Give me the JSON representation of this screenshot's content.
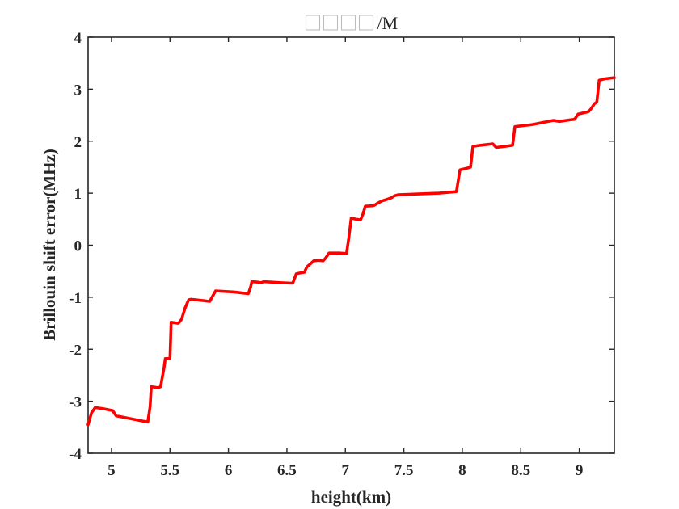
{
  "chart_data": {
    "type": "line",
    "title": "□□□□/M",
    "xlabel": "height(km)",
    "ylabel": "Brillouin shift error(MHz)",
    "xlim": [
      4.8,
      9.3
    ],
    "ylim": [
      -4,
      4
    ],
    "xticks": [
      5,
      5.5,
      6,
      6.5,
      7,
      7.5,
      8,
      8.5,
      9
    ],
    "xtick_labels": [
      "5",
      "5.5",
      "6",
      "6.5",
      "7",
      "7.5",
      "8",
      "8.5",
      "9"
    ],
    "yticks": [
      -4,
      -3,
      -2,
      -1,
      0,
      1,
      2,
      3,
      4
    ],
    "ytick_labels": [
      "-4",
      "-3",
      "-2",
      "-1",
      "0",
      "1",
      "2",
      "3",
      "4"
    ],
    "grid": false,
    "line_color": "#ff0000",
    "series": [
      {
        "x": [
          4.8,
          4.83,
          4.86,
          4.92,
          5.01,
          5.04,
          5.31,
          5.33,
          5.34,
          5.4,
          5.42,
          5.45,
          5.46,
          5.5,
          5.51,
          5.57,
          5.58,
          5.6,
          5.63,
          5.66,
          5.68,
          5.84,
          5.86,
          5.89,
          6.05,
          6.17,
          6.19,
          6.2,
          6.25,
          6.28,
          6.3,
          6.45,
          6.55,
          6.58,
          6.62,
          6.65,
          6.67,
          6.73,
          6.77,
          6.81,
          6.83,
          6.86,
          6.95,
          7.01,
          7.03,
          7.05,
          7.09,
          7.13,
          7.15,
          7.17,
          7.24,
          7.27,
          7.31,
          7.34,
          7.38,
          7.4,
          7.42,
          7.45,
          7.8,
          7.95,
          7.98,
          8.0,
          8.04,
          8.07,
          8.09,
          8.15,
          8.23,
          8.26,
          8.29,
          8.36,
          8.43,
          8.45,
          8.6,
          8.78,
          8.83,
          8.92,
          8.96,
          8.99,
          9.08,
          9.1,
          9.13,
          9.15,
          9.17,
          9.22,
          9.3
        ],
        "y": [
          -3.45,
          -3.22,
          -3.12,
          -3.14,
          -3.18,
          -3.28,
          -3.4,
          -3.1,
          -2.72,
          -2.74,
          -2.72,
          -2.35,
          -2.18,
          -2.18,
          -1.48,
          -1.5,
          -1.48,
          -1.42,
          -1.2,
          -1.05,
          -1.04,
          -1.08,
          -1.0,
          -0.88,
          -0.9,
          -0.93,
          -0.8,
          -0.7,
          -0.71,
          -0.72,
          -0.7,
          -0.72,
          -0.73,
          -0.55,
          -0.53,
          -0.52,
          -0.42,
          -0.3,
          -0.29,
          -0.3,
          -0.25,
          -0.15,
          -0.15,
          -0.16,
          0.15,
          0.52,
          0.5,
          0.49,
          0.6,
          0.75,
          0.76,
          0.8,
          0.85,
          0.87,
          0.9,
          0.92,
          0.95,
          0.97,
          1.0,
          1.03,
          1.45,
          1.46,
          1.48,
          1.5,
          1.9,
          1.92,
          1.94,
          1.95,
          1.88,
          1.9,
          1.92,
          2.28,
          2.32,
          2.4,
          2.38,
          2.41,
          2.42,
          2.52,
          2.57,
          2.62,
          2.72,
          2.75,
          3.17,
          3.2,
          3.22
        ]
      }
    ]
  }
}
